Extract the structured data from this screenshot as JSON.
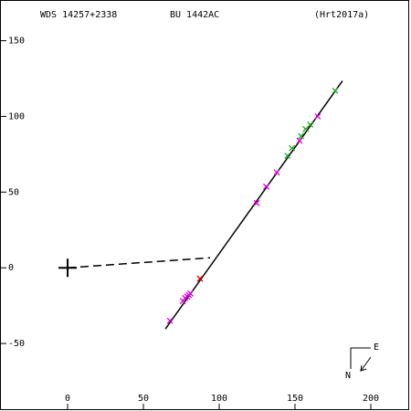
{
  "chart_data": {
    "type": "scatter",
    "title": "WDS 14257+2338",
    "subtitle": "BU 1442AC",
    "annotation": "(Hrt2017a)",
    "compass": {
      "north": "N",
      "east": "E"
    },
    "xlim": [
      -44.6,
      225.3
    ],
    "ylim": [
      -94.0,
      176.3
    ],
    "xticks": [
      0,
      50,
      100,
      150,
      200
    ],
    "yticks": [
      -50,
      0,
      50,
      100,
      150
    ],
    "series": [
      {
        "marker": "line",
        "color": "#000000",
        "x": [
          64.5,
          181.3
        ],
        "y": [
          -40.4,
          123.5
        ]
      },
      {
        "marker": "dashed",
        "color": "#000000",
        "x": [
          0,
          94
        ],
        "y": [
          0,
          6.6
        ]
      },
      {
        "marker": "plus",
        "color": "#000000",
        "x": [
          0
        ],
        "y": [
          0
        ]
      },
      {
        "marker": "x",
        "color": "#dd00dd",
        "x": [
          67.5,
          76,
          77.5,
          79,
          80,
          81,
          124.7,
          131,
          138,
          153,
          165
        ],
        "y": [
          -35,
          -22,
          -20,
          -19,
          -18,
          -17,
          42.8,
          53.6,
          63,
          84,
          100
        ]
      },
      {
        "marker": "x",
        "color": "#22aa22",
        "x": [
          145,
          148,
          154,
          157,
          160,
          176.5
        ],
        "y": [
          74,
          79,
          87,
          91.6,
          94.6,
          117
        ]
      },
      {
        "marker": "x",
        "color": "#dd0000",
        "x": [
          87.3
        ],
        "y": [
          -7.2
        ]
      }
    ]
  }
}
